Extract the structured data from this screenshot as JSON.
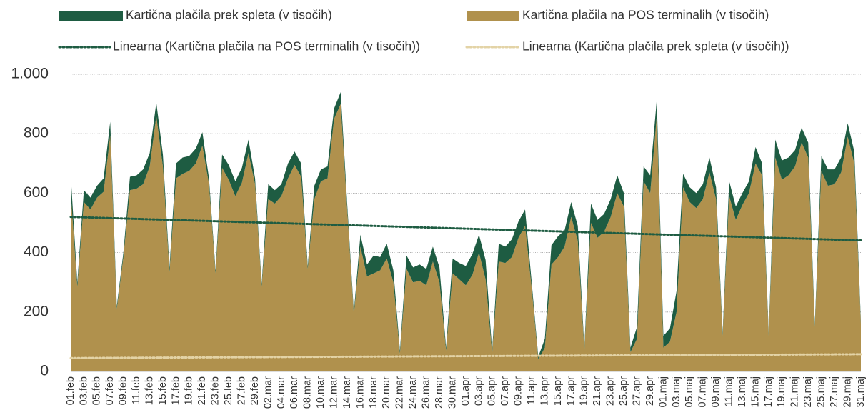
{
  "chart_data": {
    "type": "stacked_area",
    "categories": [
      "01.feb",
      null,
      "03.feb",
      null,
      "05.feb",
      null,
      "07.feb",
      null,
      "09.feb",
      null,
      "11.feb",
      null,
      "13.feb",
      null,
      "15.feb",
      null,
      "17.feb",
      null,
      "19.feb",
      null,
      "21.feb",
      null,
      "23.feb",
      null,
      "25.feb",
      null,
      "27.feb",
      null,
      "29.feb",
      null,
      "02.mar",
      null,
      "04.mar",
      null,
      "06.mar",
      null,
      "08.mar",
      null,
      "10.mar",
      null,
      "12.mar",
      null,
      "14.mar",
      null,
      "16.mar",
      null,
      "18.mar",
      null,
      "20.mar",
      null,
      "22.mar",
      null,
      "24.mar",
      null,
      "26.mar",
      null,
      "28.mar",
      null,
      "30.mar",
      null,
      "01.apr",
      null,
      "03.apr",
      null,
      "05.apr",
      null,
      "07.apr",
      null,
      "09.apr",
      null,
      "11.apr",
      null,
      "13.apr",
      null,
      "15.apr",
      null,
      "17.apr",
      null,
      "19.apr",
      null,
      "21.apr",
      null,
      "23.apr",
      null,
      "25.apr",
      null,
      "27.apr",
      null,
      "29.apr",
      null,
      "01.maj",
      null,
      "03.maj",
      null,
      "05.maj",
      null,
      "07.maj",
      null,
      "09.maj",
      null,
      "11.maj",
      null,
      "13.maj",
      null,
      "15.maj",
      null,
      "17.maj",
      null,
      "19.maj",
      null,
      "21.maj",
      null,
      "23.maj",
      null,
      "25.maj",
      null,
      "27.maj",
      null,
      "29.maj",
      null,
      "31.maj"
    ],
    "series": [
      {
        "name": "Kartična plačila na POS terminalih (v tisočih)",
        "color": "#b0914d",
        "values": [
          600,
          285,
          570,
          545,
          585,
          605,
          795,
          210,
          385,
          610,
          615,
          630,
          690,
          860,
          690,
          335,
          650,
          665,
          675,
          700,
          760,
          630,
          330,
          685,
          645,
          590,
          635,
          735,
          630,
          285,
          580,
          565,
          590,
          650,
          695,
          655,
          345,
          580,
          640,
          650,
          850,
          900,
          540,
          190,
          420,
          320,
          330,
          340,
          380,
          300,
          60,
          345,
          300,
          305,
          290,
          370,
          300,
          70,
          330,
          310,
          290,
          325,
          400,
          310,
          60,
          370,
          365,
          385,
          450,
          490,
          280,
          40,
          80,
          360,
          385,
          420,
          520,
          440,
          70,
          500,
          450,
          470,
          520,
          600,
          555,
          65,
          110,
          640,
          600,
          860,
          80,
          100,
          200,
          620,
          570,
          550,
          580,
          670,
          580,
          120,
          590,
          510,
          560,
          600,
          700,
          660,
          120,
          720,
          645,
          660,
          690,
          770,
          720,
          150,
          675,
          625,
          630,
          670,
          790,
          700,
          160
        ]
      },
      {
        "name": "Kartična plačila prek spleta (v tisočih)",
        "color": "#1e5c42",
        "values": [
          60,
          15,
          40,
          40,
          40,
          45,
          45,
          10,
          15,
          45,
          45,
          50,
          45,
          45,
          40,
          15,
          50,
          55,
          50,
          50,
          45,
          20,
          10,
          45,
          50,
          50,
          50,
          45,
          20,
          10,
          50,
          45,
          40,
          50,
          45,
          45,
          10,
          45,
          40,
          40,
          35,
          40,
          20,
          10,
          40,
          40,
          60,
          45,
          50,
          40,
          10,
          45,
          50,
          55,
          55,
          50,
          50,
          10,
          50,
          55,
          65,
          70,
          60,
          65,
          10,
          60,
          55,
          60,
          55,
          55,
          20,
          10,
          30,
          65,
          70,
          55,
          50,
          50,
          10,
          65,
          60,
          60,
          60,
          60,
          45,
          15,
          40,
          50,
          60,
          55,
          40,
          45,
          70,
          45,
          50,
          50,
          50,
          50,
          40,
          10,
          50,
          45,
          40,
          40,
          55,
          40,
          10,
          60,
          65,
          60,
          55,
          50,
          50,
          10,
          50,
          55,
          50,
          50,
          45,
          40,
          10
        ]
      }
    ],
    "trendlines": [
      {
        "name": "Linearna (Kartična plačila na POS terminalih (v tisočih))",
        "color": "#1e5c42",
        "values": [
          520,
          441
        ]
      },
      {
        "name": "Linearna (Kartična plačila prek spleta (v tisočih))",
        "color": "#e3d3a6",
        "values": [
          45,
          58
        ]
      }
    ],
    "ylim": [
      0,
      1000
    ],
    "yticks": [
      0,
      200,
      400,
      600,
      800,
      {
        "value": 1000,
        "label": "1.000"
      }
    ],
    "grid": true
  }
}
